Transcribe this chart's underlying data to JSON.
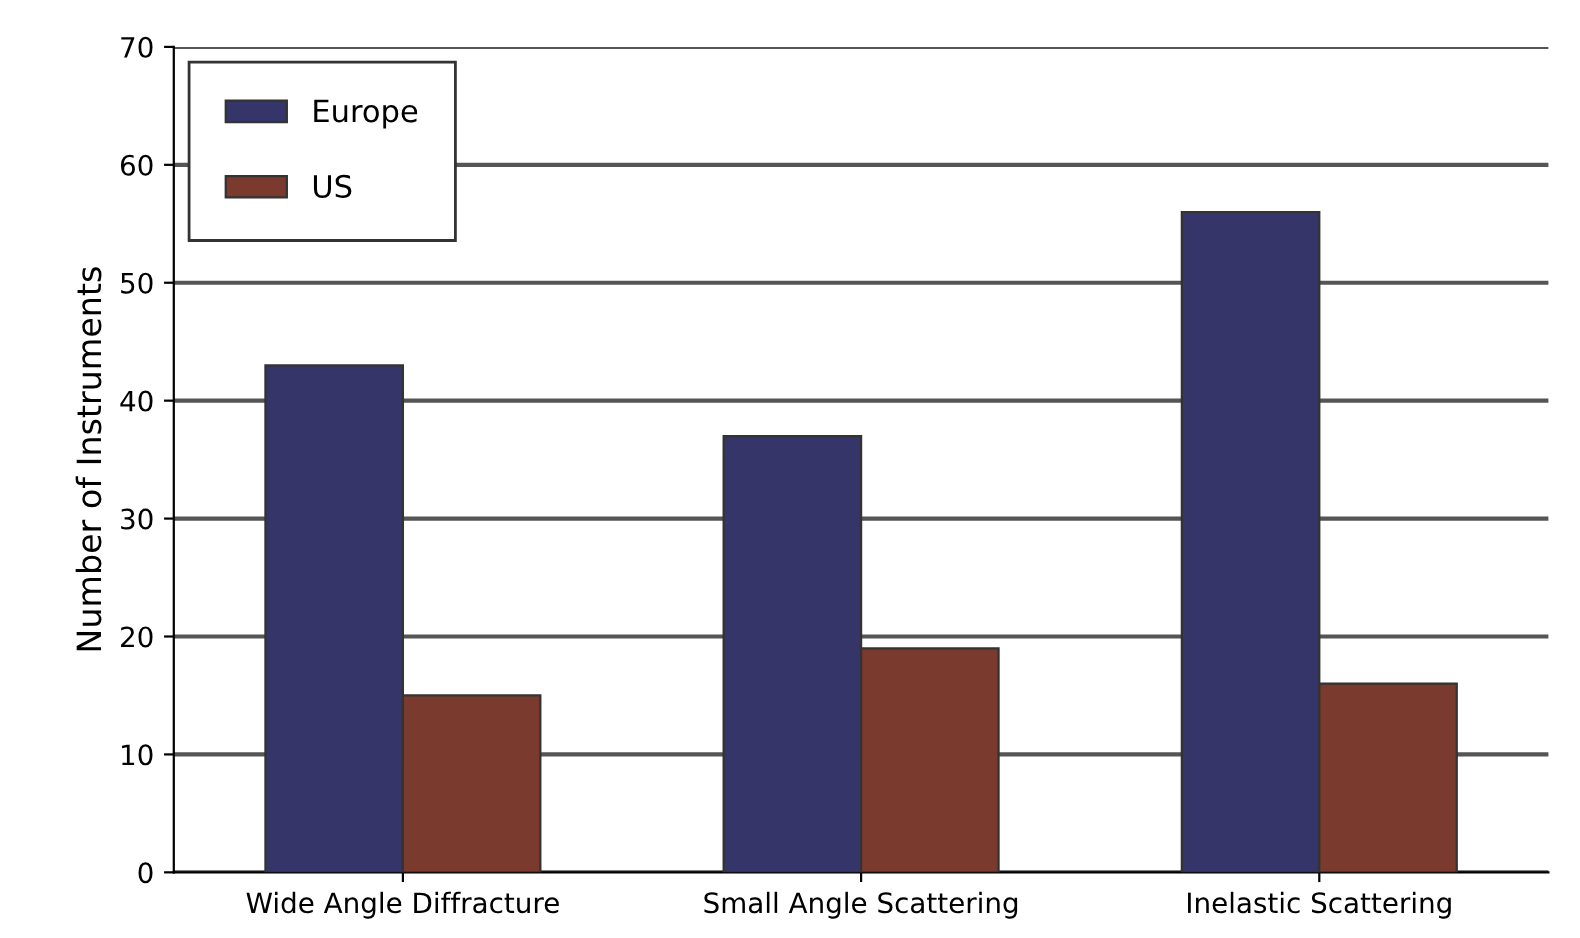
{
  "chart_data": {
    "type": "bar",
    "ylabel": "Number of Instruments",
    "categories": [
      "Wide Angle Diffracture",
      "Small Angle Scattering",
      "Inelastic Scattering"
    ],
    "series": [
      {
        "name": "Europe",
        "color": "#35356a",
        "values": [
          43,
          37,
          56
        ]
      },
      {
        "name": "US",
        "color": "#7a3a2e",
        "values": [
          15,
          19,
          16
        ]
      }
    ],
    "ylim": [
      0,
      70
    ],
    "yticks": [
      0,
      10,
      20,
      30,
      40,
      50,
      60,
      70
    ],
    "grid": "y",
    "legend": "top left"
  }
}
